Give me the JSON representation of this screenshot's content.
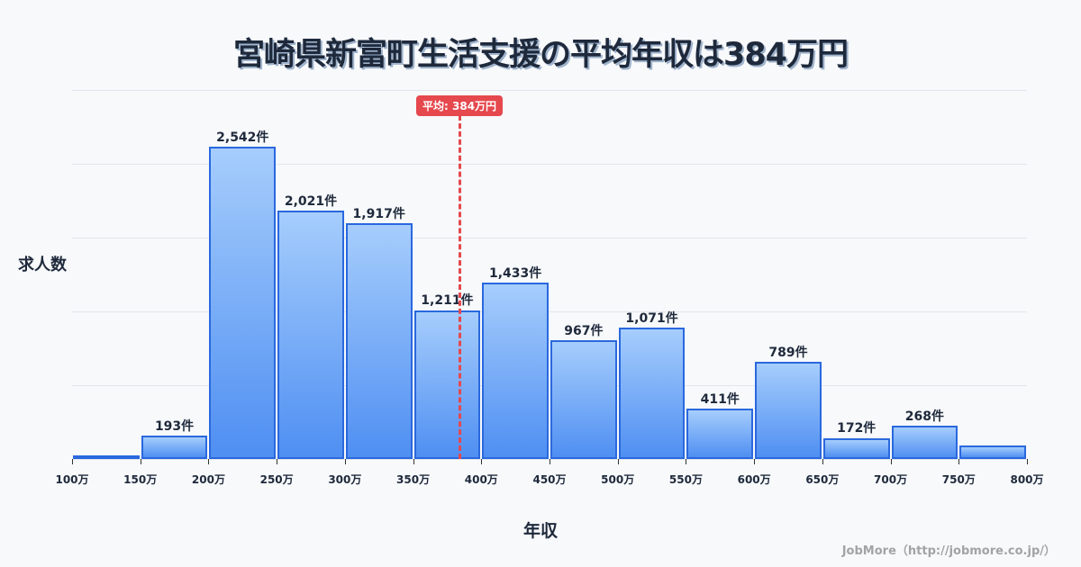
{
  "title": "宮崎県新富町生活支援の平均年収は384万円",
  "y_axis_label": "求人数",
  "x_axis_label": "年収",
  "average_badge": "平均: 384万円",
  "watermark": "JobMore（http://jobmore.co.jp/）",
  "colors": {
    "bar_border": "#2a68de",
    "bar_top": "#a6cdfc",
    "bar_bottom": "#4f8ff2",
    "average_line": "#e5484d",
    "title": "#1e293b"
  },
  "chart_data": {
    "type": "bar",
    "title": "宮崎県新富町生活支援の平均年収は384万円",
    "xlabel": "年収",
    "ylabel": "求人数",
    "ylim": [
      0,
      3000
    ],
    "grid": true,
    "average": 384,
    "tick_labels": [
      "100万",
      "150万",
      "200万",
      "250万",
      "300万",
      "350万",
      "400万",
      "450万",
      "500万",
      "550万",
      "600万",
      "650万",
      "700万",
      "750万",
      "800万"
    ],
    "categories": [
      "100-150万",
      "150-200万",
      "200-250万",
      "250-300万",
      "300-350万",
      "350-400万",
      "400-450万",
      "450-500万",
      "500-550万",
      "550-600万",
      "600-650万",
      "650-700万",
      "700-750万",
      "750-800万"
    ],
    "values": [
      10,
      193,
      2542,
      2021,
      1917,
      1211,
      1433,
      967,
      1071,
      411,
      789,
      172,
      268,
      110
    ],
    "labels": [
      "",
      "193件",
      "2,542件",
      "2,021件",
      "1,917件",
      "1,211件",
      "1,433件",
      "967件",
      "1,071件",
      "411件",
      "789件",
      "172件",
      "268件",
      ""
    ]
  }
}
